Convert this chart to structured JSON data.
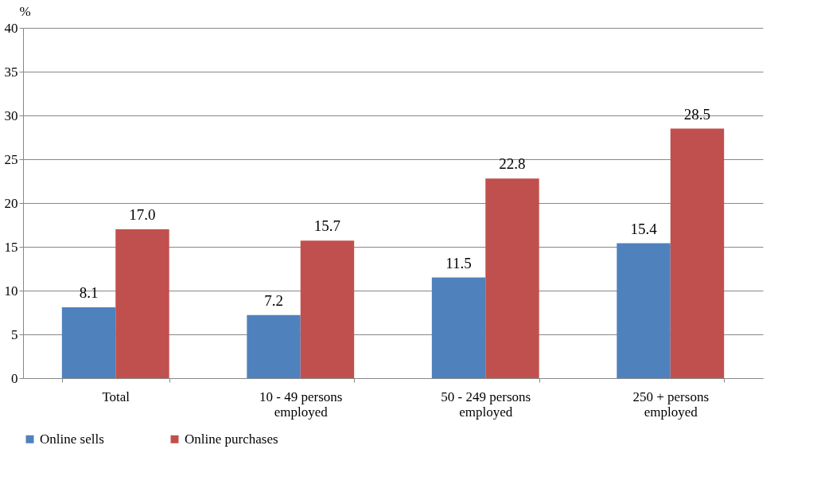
{
  "chart_data": {
    "type": "bar",
    "ylabel": "%",
    "categories": [
      "Total",
      "10 - 49 persons\nemployed",
      "50 - 249 persons\nemployed",
      "250 + persons\nemployed"
    ],
    "series": [
      {
        "name": "Online sells",
        "color": "#4f81bd",
        "values": [
          8.1,
          7.2,
          11.5,
          15.4
        ],
        "value_labels": [
          "8.1",
          "7.2",
          "11.5",
          "15.4"
        ]
      },
      {
        "name": "Online purchases",
        "color": "#c0504d",
        "values": [
          17.0,
          15.7,
          22.8,
          28.5
        ],
        "value_labels": [
          "17.0",
          "15.7",
          "22.8",
          "28.5"
        ]
      }
    ],
    "ylim": [
      0,
      40
    ],
    "yticks": [
      0,
      5,
      10,
      15,
      20,
      25,
      30,
      35,
      40
    ],
    "grid": "y",
    "legend": "bottom"
  }
}
